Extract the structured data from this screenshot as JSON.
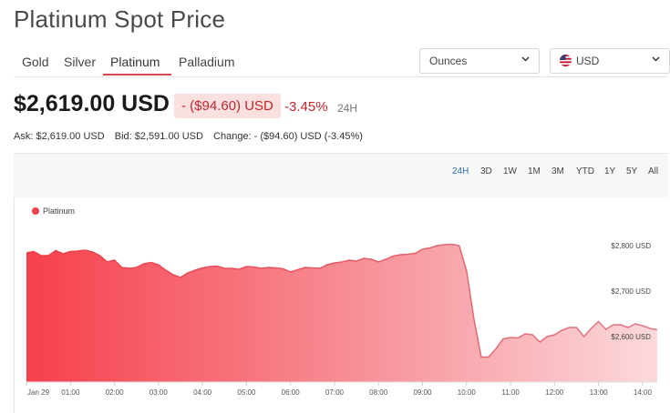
{
  "page": {
    "title": "Platinum Spot Price"
  },
  "tabs": [
    {
      "label": "Gold"
    },
    {
      "label": "Silver"
    },
    {
      "label": "Platinum",
      "active": true
    },
    {
      "label": "Palladium"
    }
  ],
  "unit_select": {
    "value": "Ounces"
  },
  "currency_select": {
    "value": "USD"
  },
  "quote": {
    "price": "$2,619.00 USD",
    "change": "- ($94.60) USD",
    "change_pct": "-3.45%",
    "period": "24H",
    "ask": "Ask: $2,619.00 USD",
    "bid": "Bid: $2,591.00 USD",
    "change_line": "Change: - ($94.60) USD (-3.45%)"
  },
  "ranges": [
    "24H",
    "3D",
    "1W",
    "1M",
    "3M",
    "YTD",
    "1Y",
    "5Y",
    "All"
  ],
  "active_range": "24H",
  "colors": {
    "accent": "#e0454f",
    "negative": "#c0262d",
    "series": "#f0404c",
    "active_range": "#2a6fb0"
  },
  "chart_data": {
    "type": "area",
    "series": [
      {
        "name": "Platinum",
        "x": [
          "00:00",
          "00:10",
          "00:20",
          "00:30",
          "00:40",
          "00:50",
          "01:00",
          "01:10",
          "01:20",
          "01:30",
          "01:40",
          "01:50",
          "02:00",
          "02:10",
          "02:20",
          "02:30",
          "02:40",
          "02:50",
          "03:00",
          "03:10",
          "03:20",
          "03:30",
          "03:40",
          "03:50",
          "04:00",
          "04:10",
          "04:20",
          "04:30",
          "04:40",
          "04:50",
          "05:00",
          "05:10",
          "05:20",
          "05:30",
          "05:40",
          "05:50",
          "06:00",
          "06:10",
          "06:20",
          "06:30",
          "06:40",
          "06:50",
          "07:00",
          "07:10",
          "07:20",
          "07:30",
          "07:40",
          "07:50",
          "08:00",
          "08:10",
          "08:20",
          "08:30",
          "08:40",
          "08:50",
          "09:00",
          "09:10",
          "09:20",
          "09:30",
          "09:40",
          "09:50",
          "10:00",
          "10:10",
          "10:20",
          "10:30",
          "10:40",
          "10:50",
          "11:00",
          "11:10",
          "11:20",
          "11:30",
          "11:40",
          "11:50",
          "12:00",
          "12:10",
          "12:20",
          "12:30",
          "12:40",
          "12:50",
          "13:00",
          "13:10",
          "13:20",
          "13:30",
          "13:40",
          "13:50",
          "14:00",
          "14:10",
          "14:20"
        ],
        "values": [
          2784,
          2787,
          2778,
          2778,
          2789,
          2782,
          2787,
          2788,
          2790,
          2786,
          2778,
          2764,
          2768,
          2752,
          2750,
          2752,
          2760,
          2763,
          2758,
          2746,
          2736,
          2730,
          2740,
          2746,
          2751,
          2754,
          2755,
          2750,
          2750,
          2748,
          2754,
          2753,
          2750,
          2752,
          2751,
          2749,
          2742,
          2747,
          2752,
          2751,
          2750,
          2758,
          2762,
          2764,
          2768,
          2766,
          2772,
          2770,
          2764,
          2770,
          2777,
          2780,
          2781,
          2783,
          2792,
          2795,
          2800,
          2802,
          2803,
          2800,
          2745,
          2640,
          2555,
          2555,
          2573,
          2595,
          2598,
          2597,
          2606,
          2604,
          2588,
          2600,
          2604,
          2614,
          2620,
          2620,
          2600,
          2618,
          2633,
          2616,
          2626,
          2626,
          2620,
          2628,
          2624,
          2618,
          2615
        ]
      }
    ],
    "x_ticks": [
      "Jan 29",
      "01:00",
      "02:00",
      "03:00",
      "04:00",
      "05:00",
      "06:00",
      "07:00",
      "08:00",
      "09:00",
      "10:00",
      "11:00",
      "12:00",
      "13:00",
      "14:00"
    ],
    "y_ticks": [
      {
        "value": 2800,
        "label": "$2,800 USD"
      },
      {
        "value": 2700,
        "label": "$2,700 USD"
      },
      {
        "value": 2600,
        "label": "$2,600 USD"
      }
    ],
    "ylim": [
      2500,
      2850
    ],
    "legend": "top-left",
    "grid": false
  }
}
